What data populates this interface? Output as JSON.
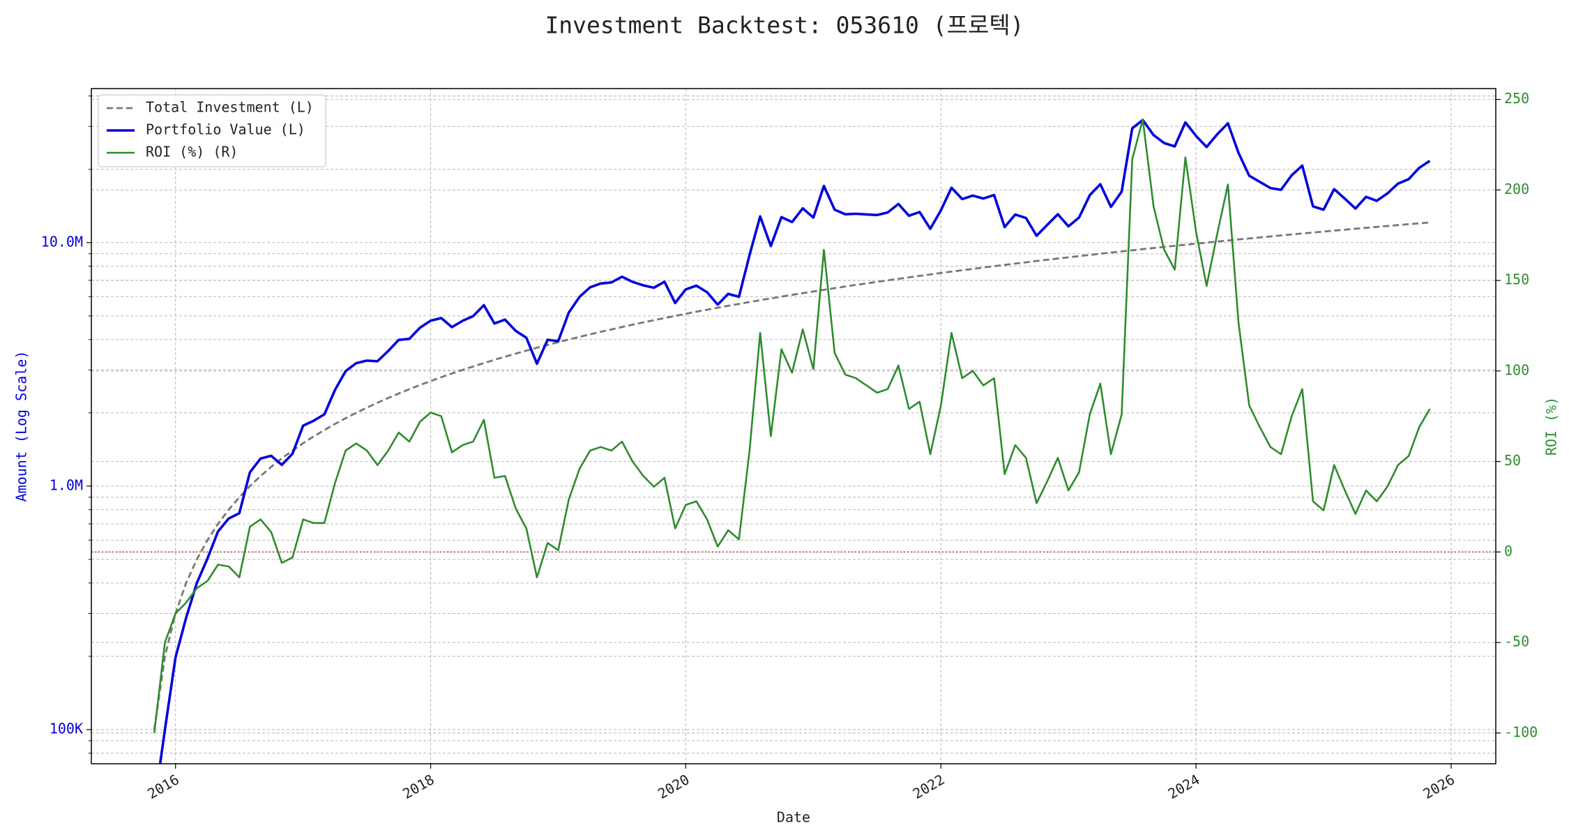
{
  "chart_data": {
    "type": "line",
    "title": "Investment Backtest: 053610 (프로텍)",
    "xlabel": "Date",
    "ylabel": "Amount (Log Scale)",
    "y2label": "ROI (%)",
    "yscale": "log",
    "grid": true,
    "legend": "upper left",
    "xlim": [
      2015.34,
      2026.35
    ],
    "xticks": [
      2016,
      2018,
      2020,
      2022,
      2024,
      2026
    ],
    "ylim": [
      72400,
      42900000
    ],
    "yticks": [
      {
        "value": 100000,
        "label": "100K"
      },
      {
        "value": 1000000,
        "label": "1.0M"
      },
      {
        "value": 10000000,
        "label": "10.0M"
      }
    ],
    "yminorticks": [
      80000,
      90000,
      200000,
      300000,
      400000,
      500000,
      600000,
      700000,
      800000,
      900000,
      2000000,
      3000000,
      4000000,
      5000000,
      6000000,
      7000000,
      8000000,
      9000000,
      20000000,
      30000000,
      40000000
    ],
    "y2lim": [
      -117,
      256
    ],
    "y2ticks": [
      -100,
      -50,
      0,
      50,
      100,
      150,
      200,
      250
    ],
    "reference_line": {
      "value": 0,
      "axis": "y2",
      "color": "#c0392b"
    },
    "x": [
      2015.833,
      2015.917,
      2016.0,
      2016.083,
      2016.167,
      2016.25,
      2016.333,
      2016.417,
      2016.5,
      2016.583,
      2016.667,
      2016.75,
      2016.833,
      2016.917,
      2017.0,
      2017.083,
      2017.167,
      2017.25,
      2017.333,
      2017.417,
      2017.5,
      2017.583,
      2017.667,
      2017.75,
      2017.833,
      2017.917,
      2018.0,
      2018.083,
      2018.167,
      2018.25,
      2018.333,
      2018.417,
      2018.5,
      2018.583,
      2018.667,
      2018.75,
      2018.833,
      2018.917,
      2019.0,
      2019.083,
      2019.167,
      2019.25,
      2019.333,
      2019.417,
      2019.5,
      2019.583,
      2019.667,
      2019.75,
      2019.833,
      2019.917,
      2020.0,
      2020.083,
      2020.167,
      2020.25,
      2020.333,
      2020.417,
      2020.5,
      2020.583,
      2020.667,
      2020.75,
      2020.833,
      2020.917,
      2021.0,
      2021.083,
      2021.167,
      2021.25,
      2021.333,
      2021.417,
      2021.5,
      2021.583,
      2021.667,
      2021.75,
      2021.833,
      2021.917,
      2022.0,
      2022.083,
      2022.167,
      2022.25,
      2022.333,
      2022.417,
      2022.5,
      2022.583,
      2022.667,
      2022.75,
      2022.833,
      2022.917,
      2023.0,
      2023.083,
      2023.167,
      2023.25,
      2023.333,
      2023.417,
      2023.5,
      2023.583,
      2023.667,
      2023.75,
      2023.833,
      2023.917,
      2024.0,
      2024.083,
      2024.167,
      2024.25,
      2024.333,
      2024.417,
      2024.5,
      2024.583,
      2024.667,
      2024.75,
      2024.833,
      2024.917,
      2025.0,
      2025.083,
      2025.167,
      2025.25,
      2025.333,
      2025.417,
      2025.5,
      2025.583,
      2025.667,
      2025.75,
      2025.833
    ],
    "series": [
      {
        "name": "Total Investment (L)",
        "color": "#777777",
        "linestyle": "dashed",
        "axis": "y",
        "values": [
          100000,
          200000,
          300000,
          400000,
          500000,
          600000,
          700000,
          800000,
          900000,
          1000000,
          1100000,
          1200000,
          1300000,
          1400000,
          1500000,
          1600000,
          1700000,
          1800000,
          1900000,
          2000000,
          2100000,
          2200000,
          2300000,
          2400000,
          2500000,
          2600000,
          2700000,
          2800000,
          2900000,
          3000000,
          3100000,
          3200000,
          3300000,
          3400000,
          3500000,
          3600000,
          3700000,
          3800000,
          3900000,
          4000000,
          4100000,
          4200000,
          4300000,
          4400000,
          4500000,
          4600000,
          4700000,
          4800000,
          4900000,
          5000000,
          5100000,
          5200000,
          5300000,
          5400000,
          5500000,
          5600000,
          5700000,
          5800000,
          5900000,
          6000000,
          6100000,
          6200000,
          6300000,
          6400000,
          6500000,
          6600000,
          6700000,
          6800000,
          6900000,
          7000000,
          7100000,
          7200000,
          7300000,
          7400000,
          7500000,
          7600000,
          7700000,
          7800000,
          7900000,
          8000000,
          8100000,
          8200000,
          8300000,
          8400000,
          8500000,
          8600000,
          8700000,
          8800000,
          8900000,
          9000000,
          9100000,
          9200000,
          9300000,
          9400000,
          9500000,
          9600000,
          9700000,
          9800000,
          9900000,
          10000000,
          10100000,
          10200000,
          10300000,
          10400000,
          10500000,
          10600000,
          10700000,
          10800000,
          10900000,
          11000000,
          11100000,
          11200000,
          11300000,
          11400000,
          11500000,
          11600000,
          11700000,
          11800000,
          11900000,
          12000000,
          12100000
        ]
      },
      {
        "name": "Portfolio Value (L)",
        "color": "#0000dd",
        "linestyle": "solid",
        "axis": "y",
        "values": [
          0,
          100000,
          198000,
          288000,
          400000,
          504000,
          651000,
          736000,
          774000,
          1140000,
          1298000,
          1332000,
          1222000,
          1358000,
          1770000,
          1856000,
          1972000,
          2484000,
          2964000,
          3200000,
          3276000,
          3256000,
          3588000,
          3984000,
          4025000,
          4472000,
          4779000,
          4900000,
          4495000,
          4770000,
          4991000,
          5536000,
          4653000,
          4828000,
          4340000,
          4068000,
          3182000,
          3990000,
          3939000,
          5160000,
          5986000,
          6552000,
          6794000,
          6864000,
          7245000,
          6900000,
          6674000,
          6528000,
          6909000,
          5650000,
          6426000,
          6656000,
          6254000,
          5562000,
          6160000,
          5992000,
          8892000,
          12818000,
          9676000,
          12720000,
          12139000,
          13826000,
          12663000,
          17088000,
          13650000,
          13068000,
          13132000,
          13056000,
          12972000,
          13300000,
          14413000,
          12888000,
          13359000,
          11396000,
          13575000,
          16796000,
          15092000,
          15600000,
          15168000,
          15680000,
          11583000,
          13038000,
          12616000,
          10668000,
          11815000,
          13072000,
          11658000,
          12672000,
          15664000,
          17370000,
          14014000,
          16192000,
          29481000,
          31866000,
          27645000,
          25632000,
          24832000,
          31164000,
          27423000,
          24700000,
          27876000,
          30906000,
          23381000,
          18824000,
          17745000,
          16748000,
          16478000,
          18900000,
          20710000,
          14080000,
          13653000,
          16576000,
          15142000,
          13794000,
          15410000,
          14848000,
          15912000,
          17464000,
          18207000,
          20280000,
          21659000
        ]
      },
      {
        "name": "ROI (%) (R)",
        "color": "#2e8b2e",
        "linestyle": "solid",
        "axis": "y2",
        "values": [
          -100,
          -50,
          -34,
          -28,
          -20,
          -16,
          -7,
          -8,
          -14,
          14,
          18,
          11,
          -6,
          -3,
          18,
          16,
          16,
          38,
          56,
          60,
          56,
          48,
          56,
          66,
          61,
          72,
          77,
          75,
          55,
          59,
          61,
          73,
          41,
          42,
          24,
          13,
          -14,
          5,
          1,
          29,
          46,
          56,
          58,
          56,
          61,
          50,
          42,
          36,
          41,
          13,
          26,
          28,
          18,
          3,
          12,
          7,
          56,
          121,
          64,
          112,
          99,
          123,
          101,
          167,
          110,
          98,
          96,
          92,
          88,
          90,
          103,
          79,
          83,
          54,
          81,
          121,
          96,
          100,
          92,
          96,
          43,
          59,
          52,
          27,
          39,
          52,
          34,
          44,
          76,
          93,
          54,
          76,
          217,
          239,
          191,
          167,
          156,
          218,
          177,
          147,
          176,
          203,
          127,
          81,
          69,
          58,
          54,
          75,
          90,
          28,
          23,
          48,
          34,
          21,
          34,
          28,
          36,
          48,
          53,
          69,
          79
        ]
      }
    ]
  }
}
